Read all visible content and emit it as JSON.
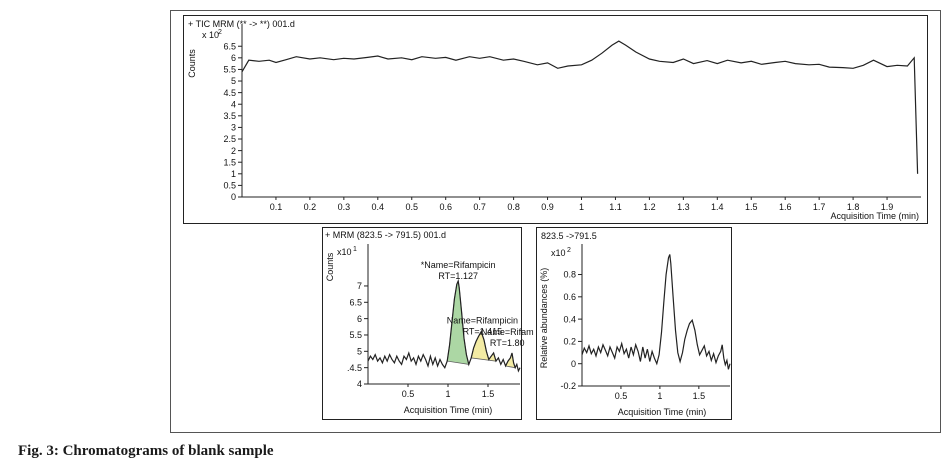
{
  "figure": {
    "caption": "Fig. 3: Chromatograms of blank sample"
  },
  "chart_data": [
    {
      "type": "line",
      "title": "+ TIC MRM (** -> **) 001.d",
      "ylabel": "Counts",
      "y_exponent_label": "x 10",
      "y_exponent_sup": "2",
      "xlabel": "Acquisition Time (min)",
      "xlim": [
        0.0,
        2.0
      ],
      "ylim": [
        0,
        7.2
      ],
      "xticks": [
        0.1,
        0.2,
        0.3,
        0.4,
        0.5,
        0.6,
        0.7,
        0.8,
        0.9,
        1,
        1.1,
        1.2,
        1.3,
        1.4,
        1.5,
        1.6,
        1.7,
        1.8,
        1.9
      ],
      "xtick_labels": [
        "0.1",
        "0.2",
        "0.3",
        "0.4",
        "0.5",
        "0.6",
        "0.7",
        "0.8",
        "0.9",
        "1",
        "1.1",
        "1.2",
        "1.3",
        "1.4",
        "1.5",
        "1.6",
        "1.7",
        "1.8",
        "1.9"
      ],
      "yticks": [
        0,
        0.5,
        1,
        1.5,
        2,
        2.5,
        3,
        3.5,
        4,
        4.5,
        5,
        5.5,
        6,
        6.5
      ],
      "ytick_labels": [
        "0",
        "0.5",
        "1",
        "1.5",
        "2",
        "2.5",
        "3",
        "3.5",
        "4",
        "4.5",
        "5",
        "5.5",
        "6",
        "6.5"
      ],
      "series": [
        {
          "x": [
            0.0,
            0.02,
            0.05,
            0.08,
            0.1,
            0.13,
            0.16,
            0.2,
            0.23,
            0.27,
            0.3,
            0.33,
            0.37,
            0.4,
            0.43,
            0.47,
            0.5,
            0.53,
            0.57,
            0.6,
            0.63,
            0.67,
            0.7,
            0.73,
            0.77,
            0.8,
            0.83,
            0.87,
            0.9,
            0.93,
            0.96,
            1.0,
            1.03,
            1.06,
            1.09,
            1.11,
            1.13,
            1.16,
            1.2,
            1.23,
            1.27,
            1.3,
            1.33,
            1.37,
            1.4,
            1.43,
            1.47,
            1.5,
            1.53,
            1.57,
            1.6,
            1.63,
            1.67,
            1.7,
            1.73,
            1.77,
            1.8,
            1.83,
            1.86,
            1.9,
            1.93,
            1.96,
            1.98,
            1.99
          ],
          "y": [
            5.4,
            5.9,
            5.85,
            5.9,
            5.8,
            5.92,
            6.05,
            5.95,
            6.0,
            5.92,
            5.98,
            5.95,
            6.02,
            6.08,
            5.95,
            6.0,
            5.92,
            6.05,
            5.98,
            6.02,
            5.9,
            6.05,
            5.98,
            6.05,
            5.9,
            5.95,
            5.85,
            5.7,
            5.78,
            5.55,
            5.65,
            5.7,
            5.9,
            6.2,
            6.55,
            6.72,
            6.55,
            6.25,
            5.95,
            5.85,
            5.8,
            5.95,
            5.75,
            5.88,
            5.75,
            5.9,
            5.78,
            5.85,
            5.72,
            5.8,
            5.85,
            5.75,
            5.7,
            5.72,
            5.6,
            5.58,
            5.55,
            5.68,
            5.9,
            5.62,
            5.68,
            5.65,
            6.0,
            1.0
          ]
        }
      ]
    },
    {
      "type": "line",
      "title": "+ MRM (823.5 -> 791.5) 001.d",
      "ylabel": "Counts",
      "y_exponent_label": "x10",
      "y_exponent_sup": "1",
      "xlabel": "Acquisition Time (min)",
      "xlim": [
        0.0,
        1.9
      ],
      "ylim": [
        4.0,
        8.1
      ],
      "xticks": [
        0.5,
        1,
        1.5
      ],
      "xtick_labels": [
        "0.5",
        "1",
        "1.5"
      ],
      "yticks": [
        4,
        4.5,
        5,
        5.5,
        6,
        6.5,
        7
      ],
      "ytick_labels": [
        "4",
        ".4.5",
        "5",
        "5.5",
        "6",
        "6.5",
        "7"
      ],
      "peaks": [
        {
          "x_start": 0.99,
          "x_end": 1.26,
          "apex_x": 1.127,
          "apex_y": 7.15,
          "fill": "#a8d5a0"
        },
        {
          "x_start": 1.27,
          "x_end": 1.62,
          "apex_x": 1.415,
          "apex_y": 5.6,
          "fill": "#f3eaa0"
        },
        {
          "x_start": 1.72,
          "x_end": 1.84,
          "apex_x": 1.8,
          "apex_y": 4.95,
          "fill": "#f3eaa0"
        }
      ],
      "annotations": [
        {
          "x": 1.127,
          "y": 7.55,
          "lines": [
            "*Name=Rifampicin",
            "RT=1.127"
          ]
        },
        {
          "x": 1.43,
          "y": 5.85,
          "lines": [
            "Name=Rifampicin",
            "RT=1.415"
          ]
        },
        {
          "x": 1.74,
          "y": 5.5,
          "lines": [
            "Name=Rifam",
            "RT=1.80"
          ]
        }
      ],
      "series": [
        {
          "x": [
            0.0,
            0.03,
            0.06,
            0.09,
            0.12,
            0.15,
            0.18,
            0.21,
            0.24,
            0.27,
            0.3,
            0.33,
            0.36,
            0.39,
            0.42,
            0.45,
            0.48,
            0.51,
            0.54,
            0.57,
            0.6,
            0.63,
            0.66,
            0.69,
            0.72,
            0.75,
            0.78,
            0.81,
            0.84,
            0.87,
            0.9,
            0.93,
            0.96,
            0.99,
            1.02,
            1.05,
            1.08,
            1.11,
            1.127,
            1.14,
            1.17,
            1.2,
            1.23,
            1.26,
            1.29,
            1.32,
            1.35,
            1.38,
            1.415,
            1.45,
            1.48,
            1.51,
            1.54,
            1.57,
            1.6,
            1.63,
            1.66,
            1.69,
            1.72,
            1.75,
            1.78,
            1.8,
            1.82,
            1.84,
            1.86,
            1.88,
            1.9
          ],
          "y": [
            4.7,
            4.85,
            4.75,
            4.9,
            4.7,
            4.8,
            4.65,
            4.85,
            4.7,
            4.9,
            4.75,
            4.65,
            4.85,
            4.7,
            4.6,
            4.85,
            4.75,
            4.95,
            4.7,
            4.8,
            4.6,
            4.85,
            4.7,
            4.9,
            4.75,
            4.55,
            4.85,
            4.6,
            4.8,
            4.55,
            4.75,
            4.6,
            4.5,
            4.7,
            5.2,
            5.9,
            6.6,
            7.05,
            7.15,
            6.95,
            6.2,
            5.4,
            4.9,
            4.6,
            4.8,
            5.1,
            5.3,
            5.45,
            5.6,
            5.35,
            5.0,
            4.75,
            4.85,
            4.95,
            4.7,
            4.8,
            4.6,
            4.75,
            4.55,
            4.7,
            4.8,
            4.95,
            4.65,
            4.5,
            4.6,
            4.4,
            4.5
          ]
        }
      ]
    },
    {
      "type": "line",
      "title": "823.5 ->791.5",
      "ylabel": "Relative abundances (%)",
      "y_exponent_label": "x10",
      "y_exponent_sup": "2",
      "xlabel": "Acquisition Time (min)",
      "xlim": [
        0.0,
        1.9
      ],
      "ylim": [
        -0.2,
        1.02
      ],
      "xticks": [
        0.5,
        1,
        1.5
      ],
      "xtick_labels": [
        "0.5",
        "1",
        "1.5"
      ],
      "yticks": [
        -0.2,
        0,
        0.2,
        0.4,
        0.6,
        0.8
      ],
      "ytick_labels": [
        "-0.2",
        "0",
        "0.2",
        "0.4",
        "0.6",
        "0.8"
      ],
      "series": [
        {
          "x": [
            0.0,
            0.03,
            0.06,
            0.09,
            0.12,
            0.15,
            0.18,
            0.21,
            0.24,
            0.27,
            0.3,
            0.33,
            0.36,
            0.39,
            0.42,
            0.45,
            0.48,
            0.51,
            0.54,
            0.57,
            0.6,
            0.63,
            0.66,
            0.69,
            0.72,
            0.75,
            0.78,
            0.81,
            0.84,
            0.87,
            0.9,
            0.93,
            0.96,
            0.99,
            1.02,
            1.05,
            1.08,
            1.11,
            1.127,
            1.14,
            1.17,
            1.2,
            1.23,
            1.26,
            1.29,
            1.32,
            1.35,
            1.38,
            1.415,
            1.45,
            1.48,
            1.51,
            1.54,
            1.57,
            1.6,
            1.63,
            1.66,
            1.69,
            1.72,
            1.75,
            1.78,
            1.8,
            1.82,
            1.84,
            1.86,
            1.88,
            1.9
          ],
          "y": [
            0.08,
            0.14,
            0.1,
            0.16,
            0.09,
            0.13,
            0.07,
            0.15,
            0.1,
            0.17,
            0.12,
            0.07,
            0.15,
            0.1,
            0.05,
            0.15,
            0.11,
            0.18,
            0.09,
            0.13,
            0.05,
            0.15,
            0.08,
            0.17,
            0.11,
            0.02,
            0.15,
            0.05,
            0.13,
            0.02,
            0.11,
            0.05,
            0.0,
            0.08,
            0.28,
            0.55,
            0.8,
            0.95,
            0.98,
            0.9,
            0.6,
            0.3,
            0.1,
            0.02,
            0.1,
            0.22,
            0.3,
            0.36,
            0.39,
            0.3,
            0.17,
            0.08,
            0.12,
            0.16,
            0.07,
            0.11,
            0.03,
            0.09,
            0.01,
            0.07,
            0.11,
            0.17,
            0.05,
            -0.01,
            0.03,
            -0.05,
            0.0
          ]
        }
      ]
    }
  ]
}
